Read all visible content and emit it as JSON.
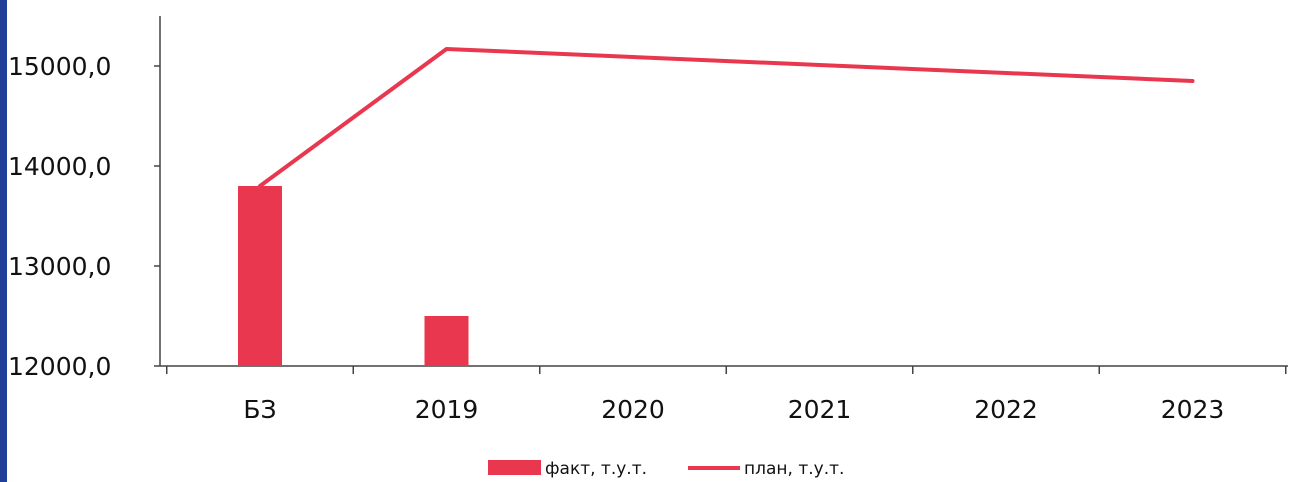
{
  "chart_data": {
    "type": "bar",
    "categories": [
      "БЗ",
      "2019",
      "2020",
      "2021",
      "2022",
      "2023"
    ],
    "series": [
      {
        "name": "факт, т.у.т.",
        "type": "bar",
        "color": "#e8374f",
        "values": [
          13800,
          12500,
          null,
          null,
          null,
          null
        ]
      },
      {
        "name": "план, т.у.т.",
        "type": "line",
        "color": "#e8374f",
        "values": [
          13800,
          15170,
          15090,
          15010,
          14930,
          14850
        ]
      }
    ],
    "y_tick_labels": [
      "12000,0",
      "13000,0",
      "14000,0",
      "15000,0"
    ],
    "y_ticks": [
      12000,
      13000,
      14000,
      15000
    ],
    "ylim": [
      12000,
      15500
    ],
    "grid": false,
    "legend_position": "bottom-center",
    "title": "",
    "xlabel": "",
    "ylabel": ""
  }
}
